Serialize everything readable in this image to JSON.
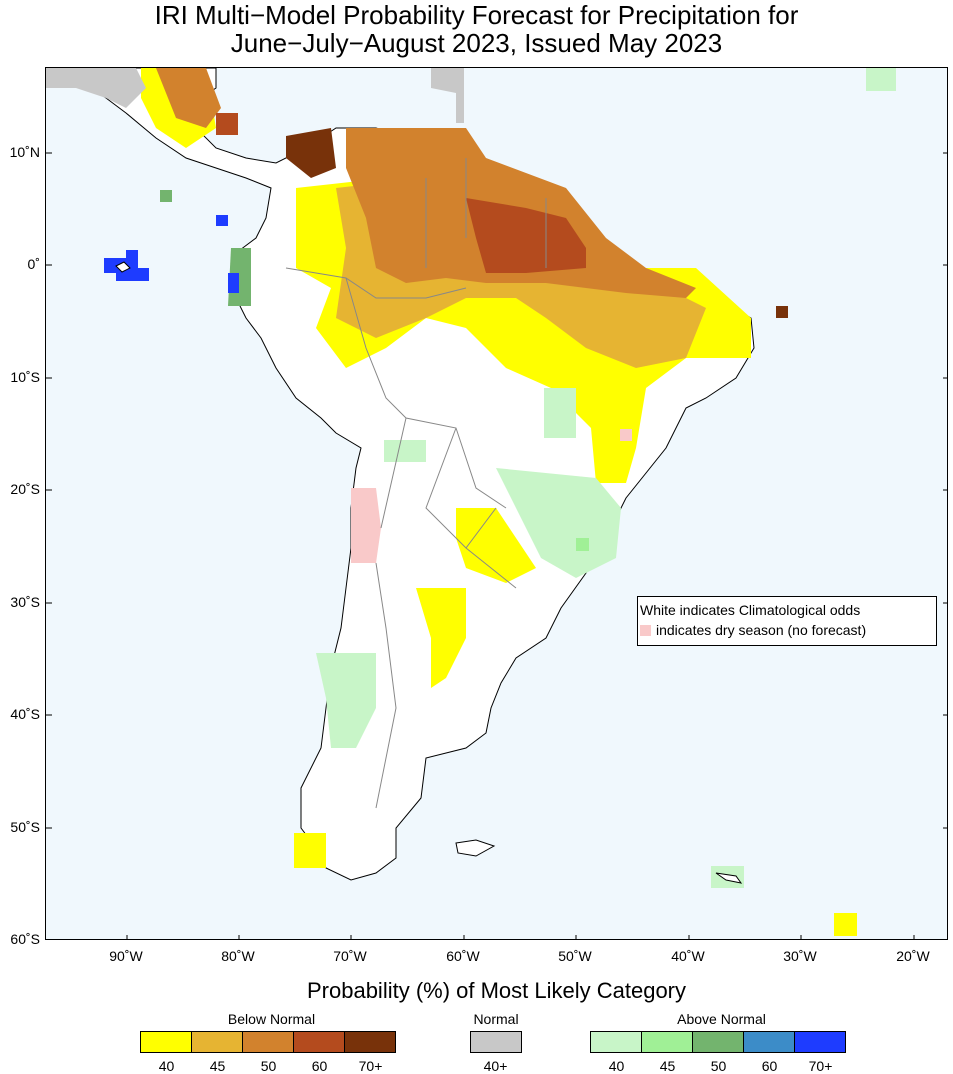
{
  "title": {
    "line1": "IRI Multi−Model Probability Forecast for Precipitation for",
    "line2": "June−July−August 2023, Issued May 2023"
  },
  "map": {
    "lat_labels": [
      "10˚N",
      "0˚",
      "10˚S",
      "20˚S",
      "30˚S",
      "40˚S",
      "50˚S",
      "60˚S"
    ],
    "lon_labels": [
      "90˚W",
      "80˚W",
      "70˚W",
      "60˚W",
      "50˚W",
      "40˚W",
      "30˚W",
      "20˚W"
    ],
    "note_line1": "White indicates Climatological odds",
    "note_line2": "indicates dry season (no forecast)"
  },
  "legend": {
    "title": "Probability (%) of Most Likely Category",
    "below": {
      "label": "Below Normal",
      "ticks": [
        "40",
        "45",
        "50",
        "60",
        "70+"
      ],
      "colors": [
        "#ffff00",
        "#e6b432",
        "#d2822d",
        "#b44b1e",
        "#78320a"
      ]
    },
    "normal": {
      "label": "Normal",
      "ticks": [
        "40+"
      ],
      "colors": [
        "#c8c8c8"
      ]
    },
    "above": {
      "label": "Above Normal",
      "ticks": [
        "40",
        "45",
        "50",
        "60",
        "70+"
      ],
      "colors": [
        "#c8f5c8",
        "#a0f096",
        "#73b46e",
        "#3c8cc8",
        "#1e3cff"
      ]
    },
    "dry_color": "#f9c9c9",
    "ocean_color": "#f0f8fd"
  }
}
